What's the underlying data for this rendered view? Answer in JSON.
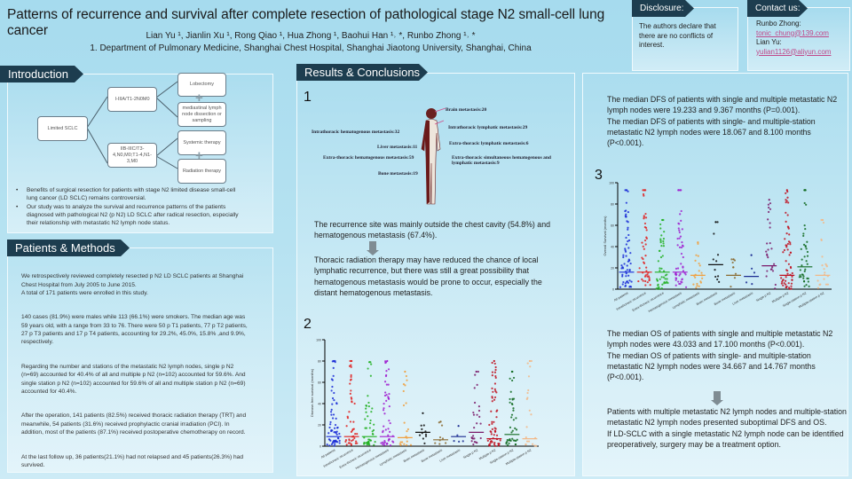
{
  "header": {
    "title": "Patterns of recurrence and survival after complete resection of pathological stage N2 small-cell lung cancer",
    "authors": "Lian Yu ¹, Jianlin Xu ¹, Rong Qiao ¹, Hua Zhong ¹, Baohui Han ¹˒ *, Runbo Zhong ¹˒ *",
    "affiliation": "1. Department of Pulmonary Medicine, Shanghai Chest Hospital, Shanghai Jiaotong University, Shanghai, China"
  },
  "disclosure": {
    "heading": "Disclosure:",
    "text": "The authors declare that there are no conflicts of interest."
  },
  "contact": {
    "heading": "Contact us:",
    "name1": "Runbo Zhong:",
    "email1": "tonic_chung@139.com",
    "name2": "Lian Yu:",
    "email2": "yulian1126@aliyun.com"
  },
  "introduction": {
    "heading": "Introduction",
    "diagram": {
      "root": "Limited SCLC",
      "stage1": "I-IIIA/T1-2N0M0",
      "stage2": "IIB-IIIC/T3-4,N0,M0;T1-4,N1-3,M0",
      "lobectomy": "Lobectomy",
      "dissection": "mediastinal lymph node dissection or sampling",
      "systemic": "Systemic therapy",
      "radiation": "Radiation therapy"
    },
    "bullets": [
      "Benefits of surgical resection for patients with stage N2 limited disease small-cell lung cancer (LD SCLC) remains controversial.",
      "Our study was to analyze the survival and recurrence patterns of the patients diagnosed with pathological N2 (p N2) LD SCLC after radical resection, especially their relationship with metastatic N2 lymph node status."
    ]
  },
  "methods": {
    "heading": "Patients & Methods",
    "paragraphs": [
      "We retrospectively reviewed completely resected p N2 LD SCLC patients at Shanghai Chest Hospital from July 2005 to June 2015.\nA total of 171 patients were enrolled in this study.",
      "140 cases (81.9%) were males while 113 (66.1%) were smokers. The median age was 59 years old, with a range from 33 to 76. There were 50 p T1 patients, 77 p T2 patients, 27 p T3 patients and 17 p T4 patients, accounting for 29.2%, 45.0%, 15.8% ,and 9.9%, respectively.",
      "Regarding the number and stations of the metastatic N2 lymph nodes, single p N2 (n=69) accounted for 40.4% of all and multiple p N2 (n=102) accounted for 59.6%. And single station p N2 (n=102) accounted for 59.6% of all and multiple station p N2 (n=69) accounted for 40.4%.",
      "After the operation, 141 patients (82.5%) received thoracic radiation therapy (TRT) and meanwhile, 54 patients (31.6%) received prophylactic cranial irradiation (PCI). In addition, most of the patients (87.1%) received postoperative chemotherapy on record.",
      "At the last follow up, 36 patients(21.1%) had not relapsed and 45 patients(26.3%) had survived."
    ]
  },
  "results": {
    "heading": "Results & Conclusions",
    "fig1": "1",
    "fig2": "2",
    "fig3": "3",
    "body_labels": {
      "brain": "Brain metastasis:20",
      "intra_lymph": "Intrathoracic lymphatic metastasis:29",
      "intra_hema": "Intrathoracic hematogenous metastasis:32",
      "extra_lymph": "Extra-thoracic lymphatic metastasis:6",
      "liver": "Liver metastasis:11",
      "extra_hema": "Extra-thoracic hematogenous metastasis:59",
      "extra_simul": "Extra-thoracic simultaneous hematogenous and lymphatic metastasis:9",
      "bone": "Bone metastasis:19"
    },
    "text1": "The recurrence site was mainly outside the chest cavity (54.8%) and hematogenous metastasis (67.4%).",
    "text2": "Thoracic radiation therapy may have reduced the chance of local lymphatic recurrence, but there was still a great possibility that hematogenous metastasis would be prone to occur, especially the distant hematogenous metastasis.",
    "dfs": "The median DFS of patients with single and multiple metastatic N2 lymph nodes were 19.233 and 9.367 months (P=0.001).\nThe median DFS of patients with single- and multiple-station metastatic N2 lymph nodes were 18.067 and 8.100 months (P<0.001).",
    "os": "The median OS of patients with single and multiple metastatic N2 lymph nodes were 43.033 and 17.100 months (P<0.001).\nThe median OS of patients with single- and multiple-station metastatic N2 lymph nodes were 34.667 and 14.767 months (P<0.001).",
    "conclusion": "Patients with multiple metastatic N2 lymph nodes and multiple-station metastatic N2 lymph nodes presented suboptimal DFS and OS.\nIf LD-SCLC with a single metastatic N2 lymph node can be identified preoperatively, surgery may be a treatment option."
  },
  "chart_data": [
    {
      "type": "scatter",
      "ylabel": "Disease-free survival (months)",
      "ylim": [
        0,
        100
      ],
      "yticks": [
        0,
        20,
        40,
        60,
        80,
        100
      ],
      "categories": [
        "All patients",
        "Intrathoracic recurrence",
        "Extra-thoracic recurrence",
        "Hematogenous metastasis",
        "Lymphatic metastasis",
        "Brain metastasis",
        "Bone metastasis",
        "Liver metastasis",
        "Single p N2",
        "Multiple p N2",
        "Single-station p N2",
        "Multiple-station p N2"
      ],
      "colors": [
        "#1a2bd6",
        "#e02020",
        "#22b022",
        "#a020d0",
        "#f0a040",
        "#111111",
        "#8a6a30",
        "#1a2a90",
        "#7a1a6a",
        "#c01020",
        "#106a20",
        "#f2b888"
      ],
      "median": [
        9,
        9,
        9,
        9,
        8,
        13,
        6,
        9,
        13,
        7,
        11,
        7
      ],
      "max": [
        80,
        80,
        79,
        80,
        70,
        31,
        23,
        19,
        70,
        80,
        70,
        80
      ]
    },
    {
      "type": "scatter",
      "ylabel": "Overall Survival (months)",
      "ylim": [
        0,
        100
      ],
      "yticks": [
        0,
        20,
        40,
        60,
        80,
        100
      ],
      "categories": [
        "All patients",
        "Intrathoracic recurrence",
        "Extra-thoracic recurrence",
        "Hematogenous metastasis",
        "Lymphatic metastasis",
        "Brain metastasis",
        "Bone metastasis",
        "Liver metastasis",
        "Single p N2",
        "Multiple p N2",
        "Single-station p N2",
        "Multiple-station p N2"
      ],
      "colors": [
        "#1a2bd6",
        "#e02020",
        "#22b022",
        "#a020d0",
        "#f0a040",
        "#111111",
        "#8a6a30",
        "#1a2a90",
        "#7a1a6a",
        "#c01020",
        "#106a20",
        "#f2b888"
      ],
      "median": [
        16,
        16,
        16,
        16,
        13,
        23,
        13,
        12,
        22,
        13,
        21,
        13
      ],
      "max": [
        93,
        93,
        65,
        93,
        44,
        63,
        28,
        32,
        84,
        93,
        93,
        65
      ]
    }
  ]
}
